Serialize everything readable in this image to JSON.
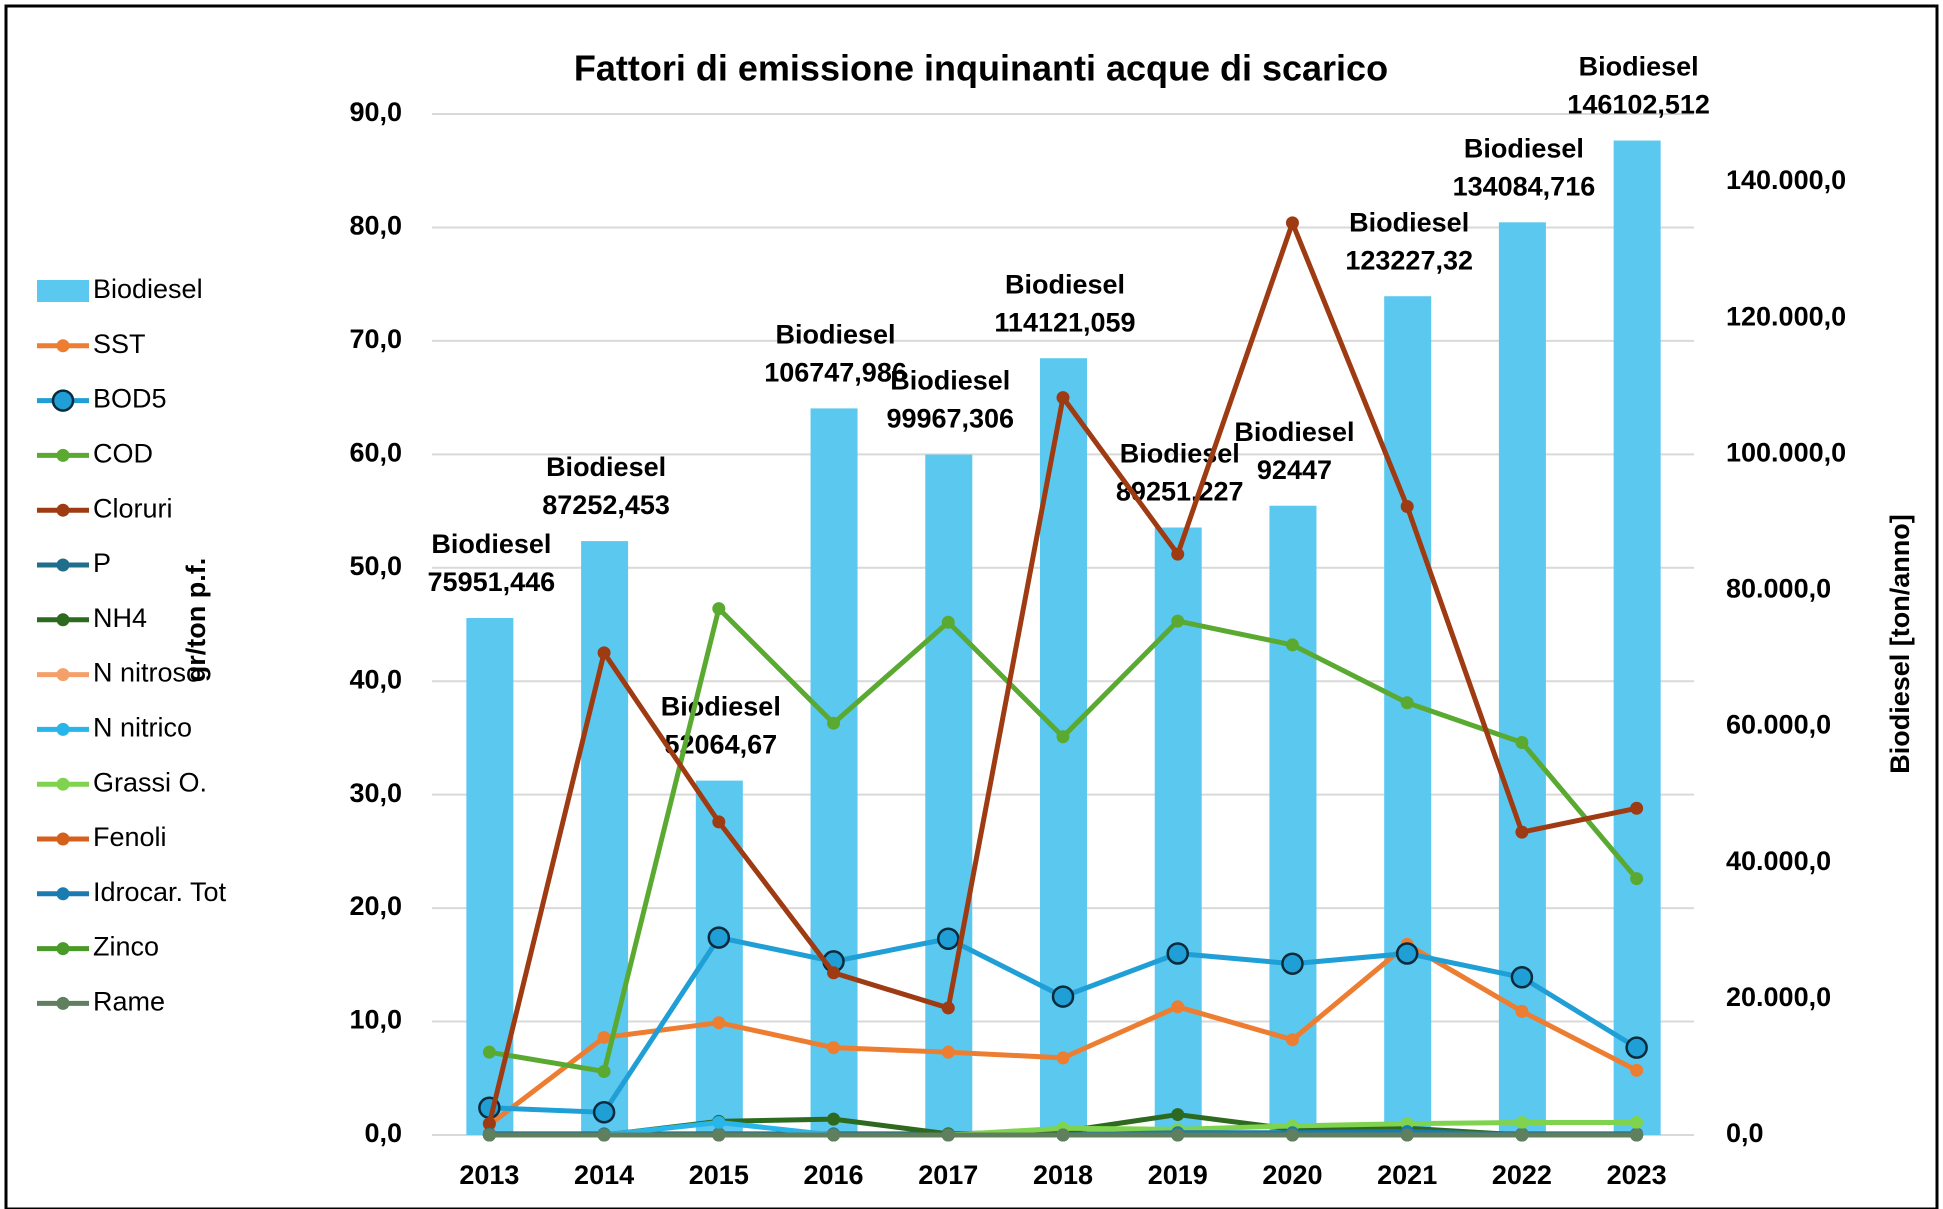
{
  "chart_data": {
    "type": "combo",
    "title": "Fattori di emissione inquinanti acque di scarico",
    "ylabel": "gr/ton p.f.",
    "y2label": "Biodiesel  [ton/anno]",
    "categories": [
      "2013",
      "2014",
      "2015",
      "2016",
      "2017",
      "2018",
      "2019",
      "2020",
      "2021",
      "2022",
      "2023"
    ],
    "ylim": [
      0,
      90
    ],
    "yticks": [
      {
        "value": 0,
        "label": "0,0"
      },
      {
        "value": 10,
        "label": "10,0"
      },
      {
        "value": 20,
        "label": "20,0"
      },
      {
        "value": 30,
        "label": "30,0"
      },
      {
        "value": 40,
        "label": "40,0"
      },
      {
        "value": 50,
        "label": "50,0"
      },
      {
        "value": 60,
        "label": "60,0"
      },
      {
        "value": 70,
        "label": "70,0"
      },
      {
        "value": 80,
        "label": "80,0"
      },
      {
        "value": 90,
        "label": "90,0"
      }
    ],
    "y2lim": [
      0,
      150000
    ],
    "y2ticks": [
      {
        "value": 0,
        "label": "0,0"
      },
      {
        "value": 20000,
        "label": "20.000,0"
      },
      {
        "value": 40000,
        "label": "40.000,0"
      },
      {
        "value": 60000,
        "label": "60.000,0"
      },
      {
        "value": 80000,
        "label": "80.000,0"
      },
      {
        "value": 100000,
        "label": "100.000,0"
      },
      {
        "value": 120000,
        "label": "120.000,0"
      },
      {
        "value": 140000,
        "label": "140.000,0"
      }
    ],
    "grid": true,
    "legend": "left",
    "series": [
      {
        "name": "Biodiesel",
        "type": "bar",
        "axis": "y2",
        "color": "#5bc8f0",
        "values": [
          75951.446,
          87252.453,
          52064.67,
          106747.986,
          99967.306,
          114121.059,
          89251.227,
          92447,
          123227.32,
          134084.716,
          146102.512
        ],
        "value_labels": [
          "75951,446",
          "87252,453",
          "52064,67",
          "106747,986",
          "99967,306",
          "114121,059",
          "89251,227",
          "92447",
          "123227,32",
          "134084,716",
          "146102,512"
        ]
      },
      {
        "name": "SST",
        "type": "line",
        "color": "#ed7d31",
        "values": [
          0.9,
          8.6,
          9.9,
          7.7,
          7.3,
          6.8,
          11.3,
          8.4,
          16.8,
          10.9,
          5.7
        ]
      },
      {
        "name": "BOD5",
        "type": "line",
        "color": "#1f9fd6",
        "values": [
          2.4,
          2.0,
          17.4,
          15.3,
          17.3,
          12.2,
          16.0,
          15.1,
          16.0,
          13.9,
          7.7
        ]
      },
      {
        "name": "COD",
        "type": "line",
        "color": "#5aaa32",
        "values": [
          7.3,
          5.6,
          46.4,
          36.3,
          45.2,
          35.1,
          45.3,
          43.2,
          38.1,
          34.6,
          22.6
        ]
      },
      {
        "name": "Cloruri",
        "type": "line",
        "color": "#9e3b12",
        "values": [
          1.0,
          42.5,
          27.6,
          14.3,
          11.2,
          65.0,
          51.2,
          80.4,
          55.4,
          26.7,
          28.8
        ]
      },
      {
        "name": "P",
        "type": "line",
        "color": "#1f6e8c",
        "values": [
          0.1,
          0.1,
          0.1,
          0.1,
          0.1,
          0.1,
          0.1,
          0.1,
          0.1,
          0.1,
          0.1
        ]
      },
      {
        "name": "NH4",
        "type": "line",
        "color": "#2d6a1f",
        "values": [
          0,
          0,
          1.2,
          1.4,
          0.1,
          0.3,
          1.8,
          0.5,
          0.6,
          0,
          0
        ]
      },
      {
        "name": "N nitroso",
        "type": "line",
        "color": "#f4a06a",
        "values": [
          0,
          0,
          0,
          0,
          0,
          0,
          0,
          0,
          0,
          0,
          0
        ]
      },
      {
        "name": "N nitrico",
        "type": "line",
        "color": "#28b6ea",
        "values": [
          0,
          0,
          1.1,
          0,
          0,
          0,
          0,
          0,
          0,
          0,
          0
        ]
      },
      {
        "name": "Grassi O.",
        "type": "line",
        "color": "#7fd34e",
        "values": [
          0,
          0,
          0,
          0,
          0,
          0.6,
          0.5,
          0.8,
          1.0,
          1.1,
          1.1
        ]
      },
      {
        "name": "Fenoli",
        "type": "line",
        "color": "#d4601c",
        "values": [
          0,
          0,
          0,
          0,
          0,
          0,
          0,
          0,
          0,
          0,
          0
        ]
      },
      {
        "name": "Idrocar. Tot",
        "type": "line",
        "color": "#1a7bb0",
        "values": [
          0,
          0,
          0,
          0,
          0,
          0,
          0.2,
          0.2,
          0.3,
          0,
          0
        ]
      },
      {
        "name": "Zinco",
        "type": "line",
        "color": "#4a9a2a",
        "values": [
          0,
          0,
          0,
          0,
          0,
          0,
          0,
          0,
          0,
          0,
          0
        ]
      },
      {
        "name": "Rame",
        "type": "line",
        "color": "#5f7f5f",
        "values": [
          0,
          0,
          0,
          0,
          0,
          0,
          0,
          0,
          0,
          0,
          0
        ]
      }
    ]
  }
}
